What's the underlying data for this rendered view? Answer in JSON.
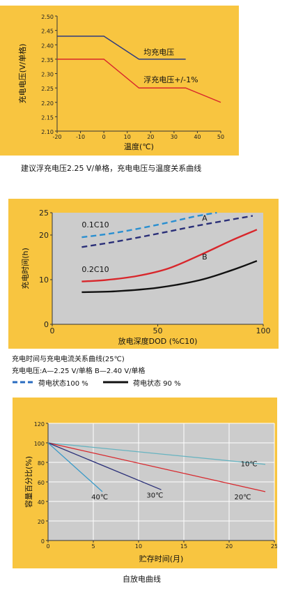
{
  "chart_data": [
    {
      "type": "line",
      "xlabel": "温度(℃)",
      "ylabel": "充电电压(V/单格)",
      "xlim": [
        -20,
        50
      ],
      "ylim": [
        2.1,
        2.5
      ],
      "xticks": [
        -20,
        -10,
        0,
        10,
        20,
        30,
        40,
        50
      ],
      "yticks": [
        2.1,
        2.15,
        2.2,
        2.25,
        2.3,
        2.35,
        2.4,
        2.45,
        2.5
      ],
      "xtick_labels": [
        "-20",
        "-10",
        "0",
        "10",
        "20",
        "30",
        "40",
        "50"
      ],
      "ytick_labels": [
        "2.10",
        "2.15",
        "2.20",
        "2.25",
        "2.30",
        "2.35",
        "2.40",
        "2.45",
        "2.50"
      ],
      "grid": false,
      "series": [
        {
          "name": "均充电压",
          "color": "#2d3a80",
          "x": [
            -20,
            0,
            15,
            35
          ],
          "y": [
            2.43,
            2.43,
            2.35,
            2.35
          ]
        },
        {
          "name": "浮充电压+/-1%",
          "color": "#d8262b",
          "x": [
            -20,
            0,
            15,
            35,
            50
          ],
          "y": [
            2.35,
            2.35,
            2.25,
            2.25,
            2.2
          ]
        }
      ],
      "caption": "建议浮充电压2.25 V/单格，充电电压与温度关系曲线"
    },
    {
      "type": "line",
      "xlabel": "放电深度DOD (%C10)",
      "ylabel": "充电时间(h)",
      "xlim": [
        0,
        100
      ],
      "ylim": [
        0,
        25
      ],
      "xticks": [
        0,
        50,
        100
      ],
      "yticks": [
        0,
        10,
        20,
        25
      ],
      "xtick_labels": [
        "0",
        "50",
        "100"
      ],
      "ytick_labels": [
        "0",
        "10",
        "20",
        "25"
      ],
      "grid": false,
      "annotations": [
        "0.1C10",
        "0.2C10",
        "A",
        "B"
      ],
      "series": [
        {
          "name": "A 0.1C10 荷电状态100 %",
          "color": "#2a8fd0",
          "dash": true,
          "x": [
            14,
            30,
            50,
            68,
            78
          ],
          "y": [
            19.5,
            20.5,
            22.3,
            24.2,
            25
          ]
        },
        {
          "name": "B 0.1C10 荷电状态 90 %",
          "color": "#2a2f78",
          "dash": true,
          "x": [
            14,
            30,
            50,
            70,
            95
          ],
          "y": [
            17.3,
            18.5,
            20.3,
            22.2,
            24.3
          ]
        },
        {
          "name": "B 0.2C10 荷电状态100 %",
          "color": "#d8262b",
          "dash": false,
          "x": [
            14,
            25,
            40,
            55,
            70,
            85,
            97
          ],
          "y": [
            9.6,
            9.9,
            10.8,
            12.5,
            15.5,
            18.8,
            21.2
          ]
        },
        {
          "name": "B 0.2C10 荷电状态 90 %",
          "color": "#111111",
          "dash": false,
          "x": [
            14,
            30,
            50,
            70,
            85,
            97
          ],
          "y": [
            7.2,
            7.4,
            8.2,
            9.9,
            12.1,
            14.2
          ]
        }
      ],
      "caption_lines": [
        "充电时间与充电电流关系曲线(25℃)",
        "充电电压:A—2.25 V/单格     B—2.40 V/单格"
      ],
      "legend": [
        {
          "label": "荷电状态100 %",
          "style": "dashed",
          "color": "#2a6cc0"
        },
        {
          "label": "荷电状态 90 %",
          "style": "solid",
          "color": "#111111"
        }
      ]
    },
    {
      "type": "line",
      "xlabel": "贮存时间(月)",
      "ylabel": "容量百分比(%)",
      "xlim": [
        0,
        25
      ],
      "ylim": [
        0,
        120
      ],
      "xticks": [
        0,
        5,
        10,
        15,
        20,
        25
      ],
      "yticks": [
        0,
        20,
        40,
        60,
        80,
        100,
        120
      ],
      "xtick_labels": [
        "0",
        "5",
        "10",
        "15",
        "20",
        "25"
      ],
      "ytick_labels": [
        "0",
        "20",
        "40",
        "60",
        "80",
        "100",
        "120"
      ],
      "grid": true,
      "series": [
        {
          "name": "10℃",
          "color": "#66b3c0",
          "x": [
            0,
            24
          ],
          "y": [
            100,
            78
          ]
        },
        {
          "name": "20℃",
          "color": "#d8262b",
          "x": [
            0,
            24
          ],
          "y": [
            100,
            50
          ]
        },
        {
          "name": "30℃",
          "color": "#2a2f78",
          "x": [
            0,
            12.5
          ],
          "y": [
            100,
            52
          ]
        },
        {
          "name": "40℃",
          "color": "#3a9ac8",
          "x": [
            0,
            6
          ],
          "y": [
            100,
            50
          ]
        }
      ],
      "caption": "自放电曲线"
    }
  ]
}
